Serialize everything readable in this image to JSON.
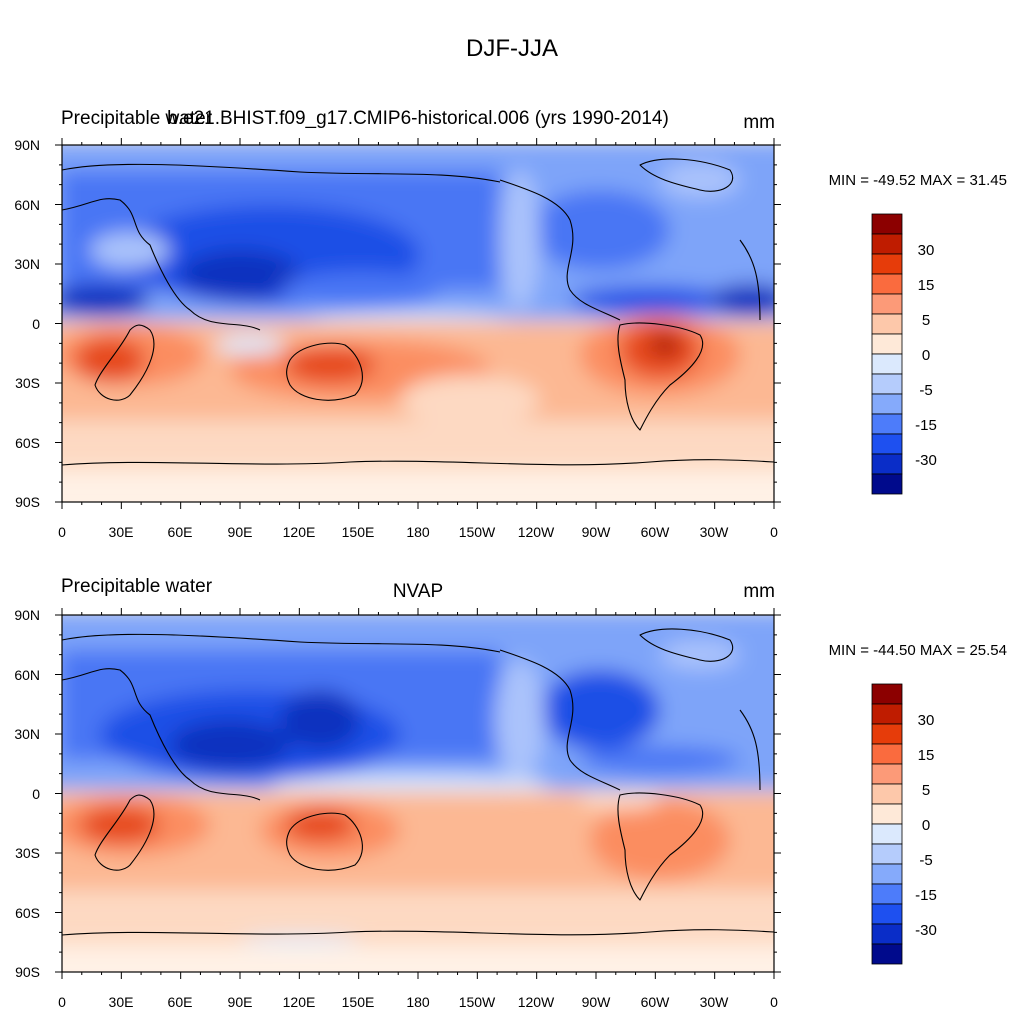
{
  "figure": {
    "main_title": "DJF-JJA"
  },
  "panels": [
    {
      "left_title": "Precipitable water",
      "center_title": "b.e21.BHIST.f09_g17.CMIP6-historical.006 (yrs 1990-2014)",
      "units": "mm",
      "stats": "MIN = -49.52 MAX =  31.45"
    },
    {
      "left_title": "Precipitable water",
      "center_title": "NVAP",
      "units": "mm",
      "stats": "MIN = -44.50 MAX =  25.54"
    }
  ],
  "axes": {
    "lat_labels": [
      "90N",
      "60N",
      "30N",
      "0",
      "30S",
      "60S",
      "90S"
    ],
    "lon_labels": [
      "0",
      "30E",
      "60E",
      "90E",
      "120E",
      "150E",
      "180",
      "150W",
      "120W",
      "90W",
      "60W",
      "30W",
      "0"
    ]
  },
  "colorbar": {
    "labels": [
      "30",
      "15",
      "5",
      "0",
      "-5",
      "-15",
      "-30"
    ],
    "colors": [
      "#8c0000",
      "#bf1c00",
      "#e63c0a",
      "#fa6b3e",
      "#fc9a78",
      "#fdc8aa",
      "#fee9d8",
      "#dbe9fd",
      "#b5ccfc",
      "#85aafb",
      "#4d7cfa",
      "#1e50f0",
      "#0a2dc8",
      "#000a8c"
    ]
  },
  "palette": {
    "dark_red": "#a8140a",
    "red": "#e64a1e",
    "orange": "#fb8d60",
    "salmon": "#fcb893",
    "peach": "#fdd9c2",
    "cream": "#fff1e6",
    "pale_blue": "#dbe8fc",
    "light_blue": "#aac3fb",
    "mid_blue": "#7ea4f9",
    "blue": "#4876f4",
    "deep_blue": "#1f4fe6",
    "navy": "#0a30bf"
  }
}
